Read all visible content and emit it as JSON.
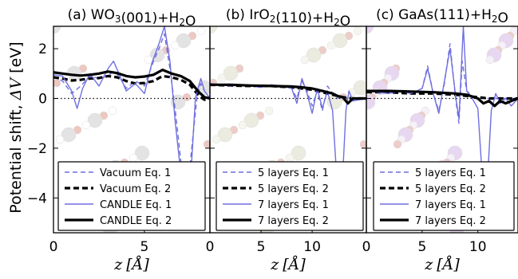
{
  "ylabel_text": "Potential shift, ",
  "ylabel_symbol": "ΔV",
  "ylabel_unit": " [eV]",
  "xlabel_symbol": "z",
  "xlabel_unit": "Å",
  "colors": {
    "eq1": "#6f6fe0",
    "eq2": "#000000",
    "frame": "#000000"
  },
  "chart_data": [
    {
      "type": "line",
      "title": "(a) WO",
      "title_sub": "3",
      "title_tail": "(001)+H",
      "title_sub2": "2",
      "title_end": "O",
      "xlim": [
        0,
        8.6
      ],
      "ylim": [
        -5.4,
        2.9
      ],
      "xticks": [
        0,
        5
      ],
      "yticks": [
        -4,
        -2,
        0,
        2
      ],
      "legend_placement": "lower-center",
      "series": [
        {
          "name": "Vacuum Eq. 1",
          "style": "dashed-thin",
          "x": [
            0,
            0.5,
            1,
            1.5,
            2,
            2.5,
            3,
            3.3,
            3.6,
            4,
            4.5,
            5,
            5.5,
            5.8,
            6.1,
            6.4,
            6.7,
            7,
            7.3,
            7.6,
            7.9,
            8.1,
            8.3,
            8.6
          ],
          "y": [
            0.9,
            0.7,
            0.2,
            0.5,
            0.9,
            0.8,
            0.9,
            1.1,
            0.9,
            0.4,
            0.7,
            0.5,
            1.5,
            2.0,
            2.6,
            1.2,
            -0.5,
            -2.5,
            -4.3,
            -2.0,
            0.1,
            0.6,
            0.3,
            0.0
          ]
        },
        {
          "name": "Vacuum Eq. 2",
          "style": "dashed-thick",
          "x": [
            0,
            0.5,
            1,
            1.5,
            2,
            2.5,
            3,
            3.5,
            4,
            4.5,
            5,
            5.5,
            6,
            6.5,
            7,
            7.5,
            8,
            8.3,
            8.6
          ],
          "y": [
            0.85,
            0.8,
            0.72,
            0.75,
            0.8,
            0.82,
            0.9,
            0.85,
            0.7,
            0.6,
            0.62,
            0.7,
            0.9,
            0.85,
            0.75,
            0.55,
            0.1,
            -0.05,
            0.0
          ]
        },
        {
          "name": "CANDLE Eq. 1",
          "style": "solid-thin",
          "x": [
            0,
            0.5,
            1,
            1.3,
            1.6,
            2,
            2.5,
            3,
            3.3,
            3.6,
            4,
            4.5,
            5,
            5.4,
            5.8,
            6.1,
            6.4,
            6.7,
            7,
            7.3,
            7.6,
            7.8,
            8.1,
            8.3,
            8.6
          ],
          "y": [
            0.95,
            0.9,
            0.3,
            -0.4,
            0.4,
            1.0,
            0.5,
            1.2,
            1.5,
            1.0,
            0.3,
            0.6,
            0.2,
            1.4,
            2.2,
            2.9,
            1.5,
            -1.0,
            -3.0,
            -4.6,
            -2.5,
            0.0,
            0.8,
            0.3,
            0.0
          ]
        },
        {
          "name": "CANDLE Eq. 2",
          "style": "solid-thick",
          "x": [
            0,
            0.5,
            1,
            1.5,
            2,
            2.5,
            3,
            3.5,
            4,
            4.5,
            5,
            5.5,
            6,
            6.5,
            7,
            7.5,
            8,
            8.3,
            8.6
          ],
          "y": [
            1.05,
            1.0,
            0.95,
            0.92,
            0.95,
            1.0,
            1.08,
            1.02,
            0.9,
            0.85,
            0.88,
            0.95,
            1.15,
            1.0,
            0.9,
            0.7,
            0.25,
            0.05,
            0.0
          ]
        }
      ]
    },
    {
      "type": "line",
      "title": "(b) IrO",
      "title_sub": "2",
      "title_tail": "(110)+H",
      "title_sub2": "2",
      "title_end": "O",
      "xlim": [
        0,
        15.3
      ],
      "ylim": [
        -5.4,
        2.9
      ],
      "xticks": [
        0,
        5,
        10
      ],
      "yticks": [
        -4,
        -2,
        0,
        2
      ],
      "legend_placement": "lower-center",
      "series": [
        {
          "name": "5 layers Eq. 1",
          "style": "dashed-thin",
          "x": [
            0,
            1,
            2,
            3,
            4,
            5,
            6,
            7,
            8,
            8.5,
            9,
            9.5,
            10,
            10.5,
            11,
            11.5,
            12,
            12.5,
            13,
            13.5,
            14,
            15.3
          ],
          "y": [
            0.6,
            0.55,
            0.5,
            0.55,
            0.5,
            0.45,
            0.5,
            0.5,
            0.4,
            0.0,
            0.7,
            0.3,
            -0.3,
            0.3,
            -0.5,
            0.5,
            0.2,
            0.0,
            0.1,
            0.0,
            -0.1,
            0.0
          ]
        },
        {
          "name": "5 layers Eq. 2",
          "style": "dashed-thick",
          "x": [
            0,
            2,
            4,
            6,
            8,
            9,
            10,
            11,
            12,
            13,
            14,
            15.3
          ],
          "y": [
            0.55,
            0.52,
            0.5,
            0.5,
            0.45,
            0.4,
            0.35,
            0.25,
            0.15,
            0.05,
            0.0,
            0.0
          ]
        },
        {
          "name": "7 layers Eq. 1",
          "style": "solid-thin",
          "x": [
            0,
            1,
            2,
            3,
            4,
            5,
            6,
            7,
            8,
            8.5,
            9,
            9.5,
            10,
            10.5,
            11,
            11.5,
            12,
            12.3,
            12.6,
            13,
            13.3,
            13.6,
            14,
            15.3
          ],
          "y": [
            0.6,
            0.55,
            0.5,
            0.55,
            0.5,
            0.45,
            0.55,
            0.5,
            0.4,
            -0.2,
            0.8,
            0.2,
            -0.6,
            0.4,
            -0.4,
            0.3,
            -0.5,
            -2.5,
            -4.5,
            -3.0,
            -0.5,
            0.3,
            -0.1,
            0.0
          ]
        },
        {
          "name": "7 layers Eq. 2",
          "style": "solid-thick",
          "x": [
            0,
            2,
            4,
            6,
            8,
            9,
            10,
            11,
            12,
            12.5,
            13,
            13.5,
            14,
            15.3
          ],
          "y": [
            0.55,
            0.55,
            0.52,
            0.5,
            0.48,
            0.45,
            0.4,
            0.3,
            0.2,
            0.1,
            0.05,
            -0.2,
            0.0,
            0.0
          ]
        }
      ]
    },
    {
      "type": "line",
      "title": "(c) GaAs(111)+H",
      "title_sub": "",
      "title_tail": "",
      "title_sub2": "2",
      "title_end": "O",
      "xlim": [
        0,
        13.6
      ],
      "ylim": [
        -5.4,
        2.9
      ],
      "xticks": [
        0,
        5,
        10
      ],
      "yticks": [
        -4,
        -2,
        0,
        2
      ],
      "legend_placement": "lower-center",
      "series": [
        {
          "name": "5 layers Eq. 1",
          "style": "dashed-thin",
          "x": [
            0,
            1,
            2,
            3,
            4,
            5,
            5.5,
            6,
            6.5,
            7,
            7.5,
            8,
            8.3,
            8.6,
            9,
            9.5,
            10,
            11,
            12,
            13.6
          ],
          "y": [
            0.3,
            0.25,
            0.2,
            0.3,
            0.2,
            0.4,
            1.3,
            0.2,
            -0.5,
            0.6,
            2.2,
            0.0,
            -1.0,
            1.5,
            0.3,
            0.1,
            0.0,
            0.0,
            0.0,
            0.0
          ]
        },
        {
          "name": "5 layers Eq. 2",
          "style": "dashed-thick",
          "x": [
            0,
            2,
            4,
            6,
            8,
            9,
            10,
            11,
            12,
            13.6
          ],
          "y": [
            0.25,
            0.25,
            0.2,
            0.2,
            0.15,
            0.1,
            0.05,
            0.0,
            0.0,
            0.0
          ]
        },
        {
          "name": "7 layers Eq. 1",
          "style": "solid-thin",
          "x": [
            0,
            1,
            2,
            3,
            4,
            5,
            5.5,
            6,
            6.5,
            7,
            7.5,
            8,
            8.3,
            8.7,
            9,
            9.5,
            10,
            10.3,
            10.6,
            10.9,
            11.2,
            11.6,
            12,
            12.5,
            13,
            13.6
          ],
          "y": [
            0.3,
            0.25,
            0.2,
            0.3,
            0.2,
            0.4,
            1.2,
            0.2,
            -0.6,
            0.7,
            2.0,
            0.1,
            -0.8,
            2.9,
            0.3,
            0.0,
            -0.4,
            -2.5,
            -5.3,
            -3.0,
            -0.5,
            0.2,
            -0.2,
            0.0,
            -0.3,
            0.0
          ]
        },
        {
          "name": "7 layers Eq. 2",
          "style": "solid-thick",
          "x": [
            0,
            2,
            4,
            6,
            8,
            9,
            10,
            10.5,
            11,
            11.5,
            12,
            12.5,
            13,
            13.6
          ],
          "y": [
            0.3,
            0.3,
            0.28,
            0.25,
            0.2,
            0.15,
            0.0,
            -0.2,
            -0.1,
            -0.3,
            -0.1,
            -0.2,
            -0.1,
            0.0
          ]
        }
      ]
    }
  ]
}
